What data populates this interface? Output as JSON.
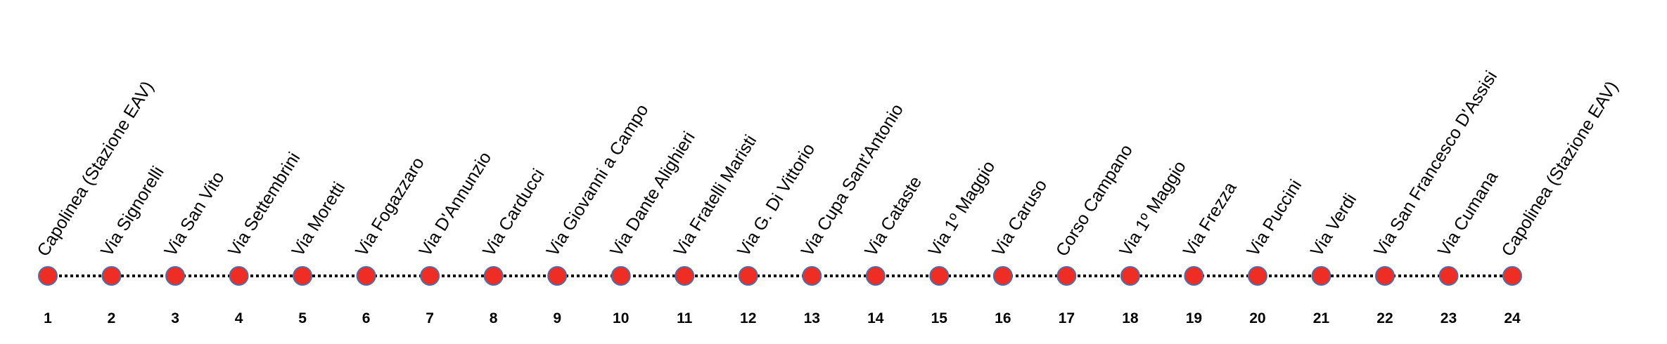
{
  "stops": [
    {
      "number": 1,
      "name": "Capolinea (Stazione EAV)"
    },
    {
      "number": 2,
      "name": "Via Signorelli"
    },
    {
      "number": 3,
      "name": "Via San Vito"
    },
    {
      "number": 4,
      "name": "Via Settembrini"
    },
    {
      "number": 5,
      "name": "Via Moretti"
    },
    {
      "number": 6,
      "name": "Via Fogazzaro"
    },
    {
      "number": 7,
      "name": "Via D'Annunzio"
    },
    {
      "number": 8,
      "name": "Via Carducci"
    },
    {
      "number": 9,
      "name": "Via Giovanni a Campo"
    },
    {
      "number": 10,
      "name": "Via Dante Alighieri"
    },
    {
      "number": 11,
      "name": "Via Fratelli Maristi"
    },
    {
      "number": 12,
      "name": "Via G. Di Vittorio"
    },
    {
      "number": 13,
      "name": "Via Cupa Sant'Antonio"
    },
    {
      "number": 14,
      "name": "Via Cataste"
    },
    {
      "number": 15,
      "name": "Via 1º Maggio"
    },
    {
      "number": 16,
      "name": "Via Caruso"
    },
    {
      "number": 17,
      "name": "Corso Campano"
    },
    {
      "number": 18,
      "name": "Via 1º Maggio"
    },
    {
      "number": 19,
      "name": "Via Frezza"
    },
    {
      "number": 20,
      "name": "Via Puccini"
    },
    {
      "number": 21,
      "name": "Via Verdi"
    },
    {
      "number": 22,
      "name": "Via San Francesco D'Assisi"
    },
    {
      "number": 23,
      "name": "Via Cumana"
    },
    {
      "number": 24,
      "name": "Capolinea (Stazione EAV)"
    }
  ]
}
